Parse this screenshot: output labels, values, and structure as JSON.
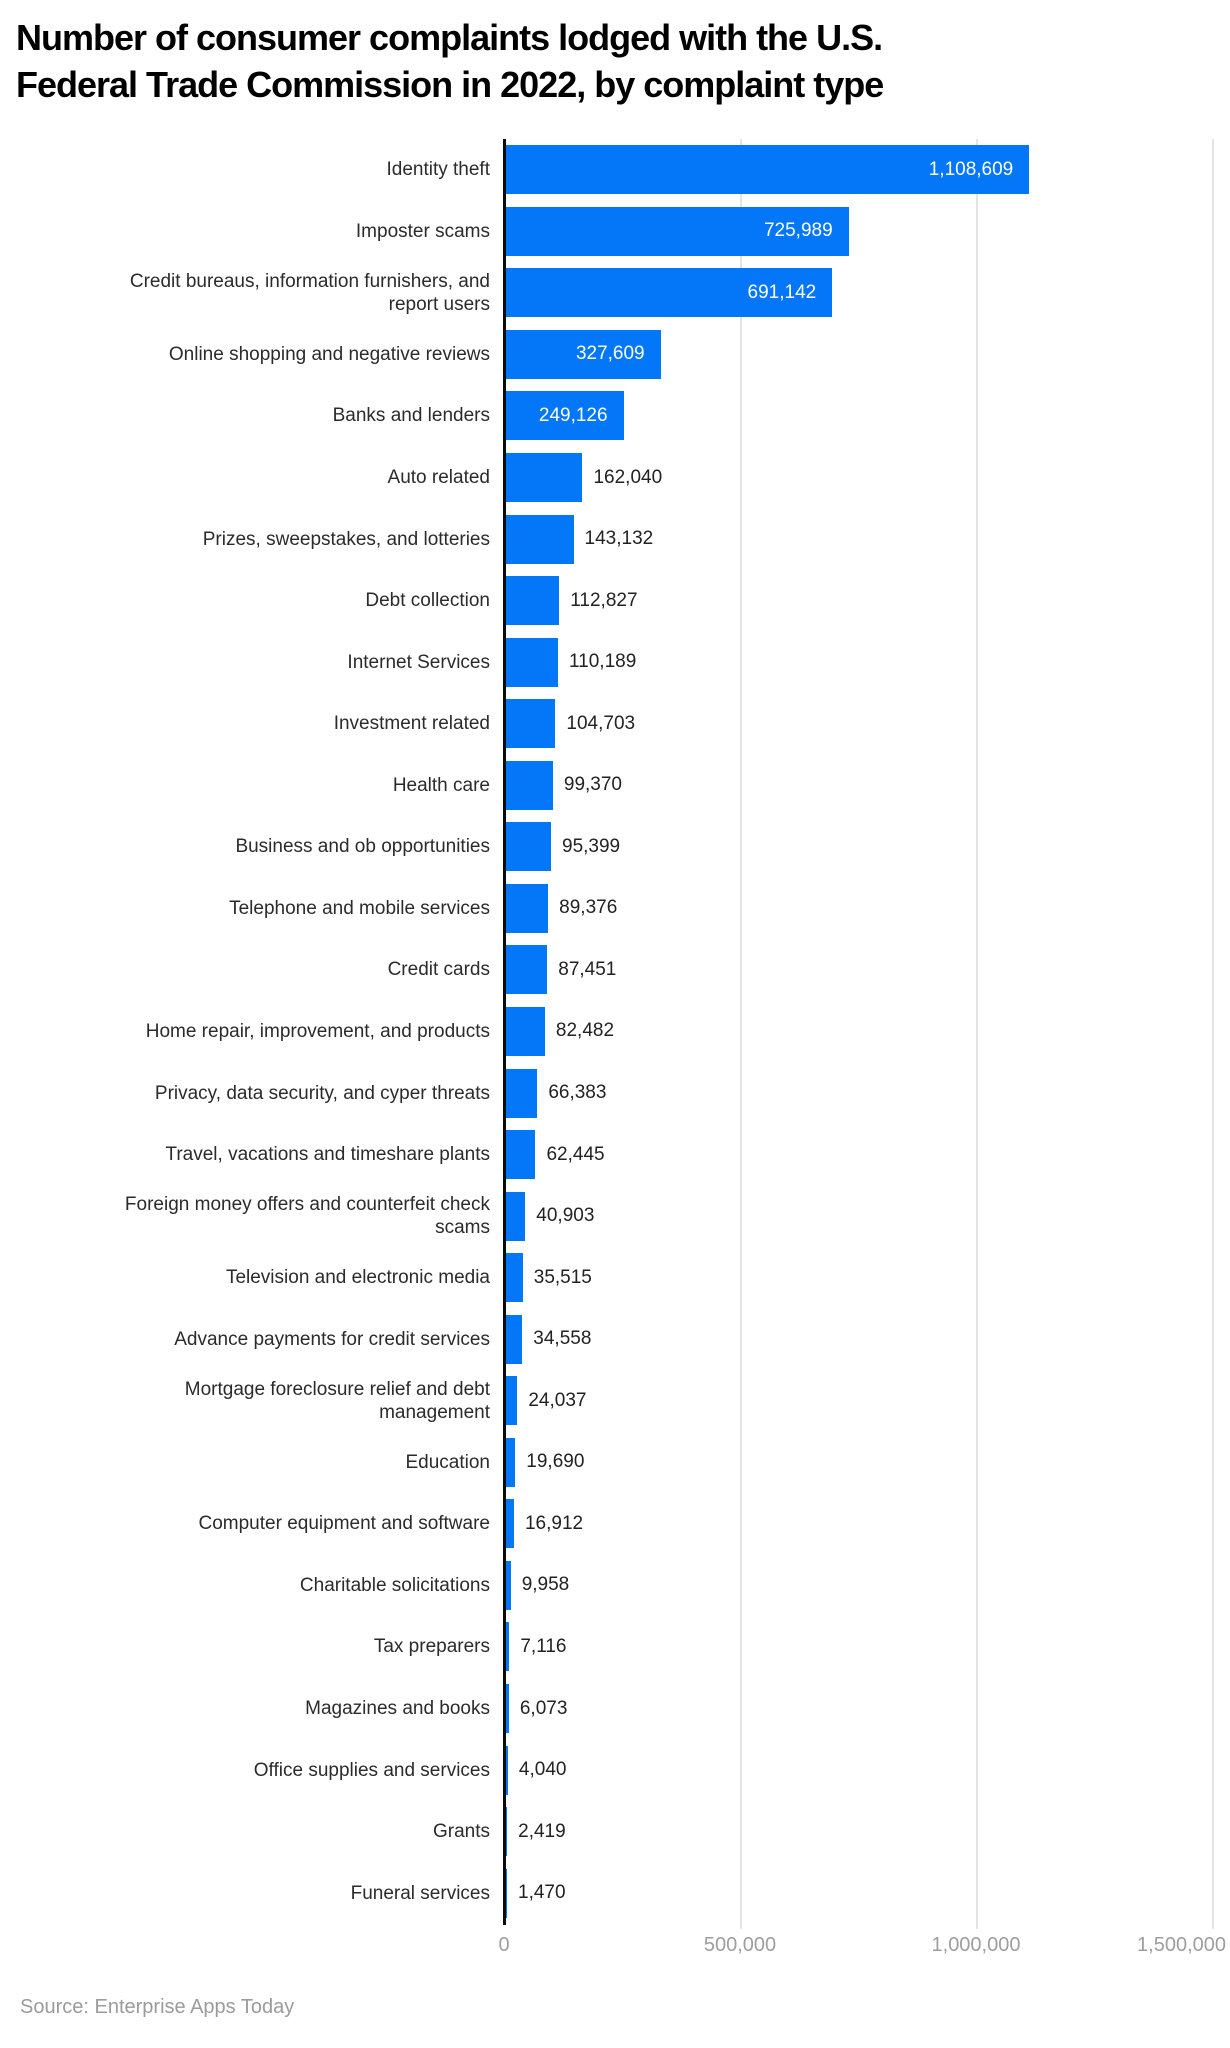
{
  "title_lines": [
    "Number of consumer complaints lodged with the U.S.",
    "Federal Trade Commission in 2022, by complaint type"
  ],
  "source": "Source: Enterprise Apps Today",
  "colors": {
    "bar": "#0377F8",
    "axis_line": "#0b0b0b",
    "gridline": "#e4e4e4",
    "category_label": "#2b2b2b",
    "value_inside": "#ffffff",
    "value_outside": "#222222",
    "tick_label": "#9e9e9e",
    "source_text": "#9b9b9b",
    "title_text": "#000000",
    "background": "#ffffff"
  },
  "chart_data": {
    "type": "bar",
    "orientation": "horizontal",
    "title": "Number of consumer complaints lodged with the U.S. Federal Trade Commission in 2022, by complaint type",
    "xlabel": "",
    "ylabel": "",
    "xlim": [
      0,
      1500000
    ],
    "grid": "vertical",
    "legend": "none",
    "categories": [
      "Identity theft",
      "Imposter scams",
      "Credit bureaus, information furnishers, and\nreport users",
      "Online shopping and negative reviews",
      "Banks and lenders",
      "Auto related",
      "Prizes, sweepstakes, and lotteries",
      "Debt collection",
      "Internet Services",
      "Investment related",
      "Health care",
      "Business and ob opportunities",
      "Telephone and mobile services",
      "Credit cards",
      "Home repair, improvement, and products",
      "Privacy, data security, and cyper threats",
      "Travel, vacations and timeshare plants",
      "Foreign money offers and counterfeit check\nscams",
      "Television and electronic media",
      "Advance payments for credit services",
      "Mortgage foreclosure relief and debt\nmanagement",
      "Education",
      "Computer equipment and software",
      "Charitable solicitations",
      "Tax preparers",
      "Magazines and books",
      "Office supplies and services",
      "Grants",
      "Funeral services"
    ],
    "values": [
      1108609,
      725989,
      691142,
      327609,
      249126,
      162040,
      143132,
      112827,
      110189,
      104703,
      99370,
      95399,
      89376,
      87451,
      82482,
      66383,
      62445,
      40903,
      35515,
      34558,
      24037,
      19690,
      16912,
      9958,
      7116,
      6073,
      4040,
      2419,
      1470
    ],
    "value_labels": [
      "1,108,609",
      "725,989",
      "691,142",
      "327,609",
      "249,126",
      "162,040",
      "143,132",
      "112,827",
      "110,189",
      "104,703",
      "99,370",
      "95,399",
      "89,376",
      "87,451",
      "82,482",
      "66,383",
      "62,445",
      "40,903",
      "35,515",
      "34,558",
      "24,037",
      "19,690",
      "16,912",
      "9,958",
      "7,116",
      "6,073",
      "4,040",
      "2,419",
      "1,470"
    ],
    "x_tick_values": [
      0,
      500000,
      1000000,
      1500000
    ],
    "x_tick_labels": [
      "0",
      "500,000",
      "1,000,000",
      "1,500,000"
    ]
  }
}
